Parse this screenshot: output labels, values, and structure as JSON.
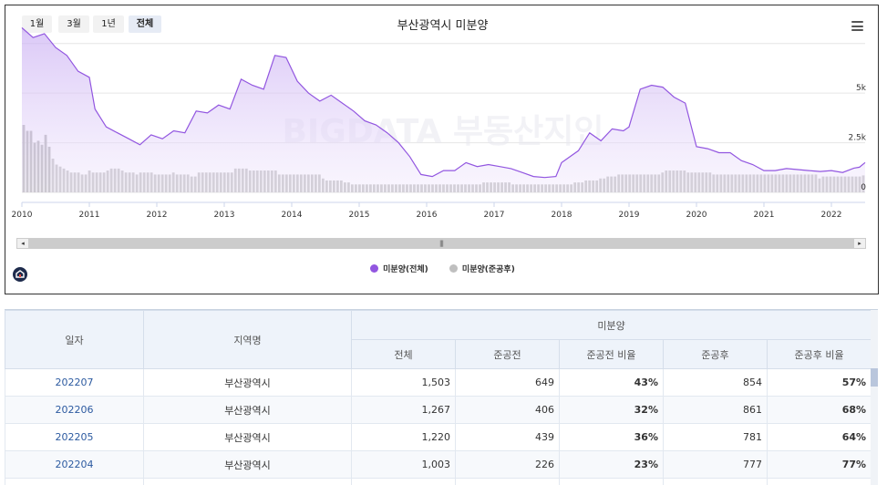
{
  "range_buttons": [
    {
      "label": "1월",
      "active": false
    },
    {
      "label": "3월",
      "active": false
    },
    {
      "label": "1년",
      "active": false
    },
    {
      "label": "전체",
      "active": true
    }
  ],
  "watermark": "BIGDATA 부동산지인",
  "colors": {
    "total": "#9256e0",
    "total_fill_top": "#d8c4f7",
    "after": "#bfbfbf",
    "after_dark": "#b0b0b0"
  },
  "chart_data": {
    "type": "line",
    "title": "부산광역시 미분양",
    "x_tick_labels": [
      "2010",
      "2011",
      "2012",
      "2013",
      "2014",
      "2015",
      "2016",
      "2017",
      "2018",
      "2019",
      "2020",
      "2021",
      "2022"
    ],
    "y_tick_labels": [
      "0",
      "2.5k",
      "5k"
    ],
    "ylim": [
      0,
      8500
    ],
    "x_range": [
      "2010-01",
      "2022-07"
    ],
    "grid": true,
    "legend_position": "bottom",
    "series": [
      {
        "name": "미분양(전체)",
        "type": "area",
        "points": [
          [
            "2010-01",
            8300
          ],
          [
            "2010-03",
            7800
          ],
          [
            "2010-05",
            8000
          ],
          [
            "2010-07",
            7300
          ],
          [
            "2010-09",
            6900
          ],
          [
            "2010-11",
            6100
          ],
          [
            "2011-01",
            5800
          ],
          [
            "2011-02",
            4200
          ],
          [
            "2011-04",
            3300
          ],
          [
            "2011-06",
            3000
          ],
          [
            "2011-08",
            2700
          ],
          [
            "2011-10",
            2400
          ],
          [
            "2011-12",
            2900
          ],
          [
            "2012-02",
            2700
          ],
          [
            "2012-04",
            3100
          ],
          [
            "2012-06",
            3000
          ],
          [
            "2012-08",
            4100
          ],
          [
            "2012-10",
            4000
          ],
          [
            "2012-12",
            4400
          ],
          [
            "2013-02",
            4200
          ],
          [
            "2013-04",
            5700
          ],
          [
            "2013-06",
            5400
          ],
          [
            "2013-08",
            5200
          ],
          [
            "2013-10",
            6900
          ],
          [
            "2013-12",
            6800
          ],
          [
            "2014-02",
            5600
          ],
          [
            "2014-04",
            5000
          ],
          [
            "2014-06",
            4600
          ],
          [
            "2014-08",
            4900
          ],
          [
            "2014-10",
            4500
          ],
          [
            "2014-12",
            4100
          ],
          [
            "2015-02",
            3600
          ],
          [
            "2015-04",
            3400
          ],
          [
            "2015-06",
            3000
          ],
          [
            "2015-08",
            2500
          ],
          [
            "2015-10",
            1800
          ],
          [
            "2015-12",
            900
          ],
          [
            "2016-02",
            800
          ],
          [
            "2016-04",
            1100
          ],
          [
            "2016-06",
            1100
          ],
          [
            "2016-08",
            1500
          ],
          [
            "2016-10",
            1300
          ],
          [
            "2016-12",
            1400
          ],
          [
            "2017-02",
            1300
          ],
          [
            "2017-04",
            1200
          ],
          [
            "2017-06",
            1000
          ],
          [
            "2017-08",
            800
          ],
          [
            "2017-10",
            750
          ],
          [
            "2017-12",
            800
          ],
          [
            "2018-01",
            1500
          ],
          [
            "2018-04",
            2100
          ],
          [
            "2018-06",
            3000
          ],
          [
            "2018-08",
            2600
          ],
          [
            "2018-10",
            3200
          ],
          [
            "2018-12",
            3100
          ],
          [
            "2019-01",
            3300
          ],
          [
            "2019-03",
            5200
          ],
          [
            "2019-05",
            5400
          ],
          [
            "2019-07",
            5300
          ],
          [
            "2019-09",
            4800
          ],
          [
            "2019-11",
            4500
          ],
          [
            "2020-01",
            2300
          ],
          [
            "2020-03",
            2200
          ],
          [
            "2020-05",
            2000
          ],
          [
            "2020-07",
            2000
          ],
          [
            "2020-09",
            1600
          ],
          [
            "2020-11",
            1400
          ],
          [
            "2021-01",
            1100
          ],
          [
            "2021-03",
            1100
          ],
          [
            "2021-05",
            1200
          ],
          [
            "2021-07",
            1150
          ],
          [
            "2021-09",
            1100
          ],
          [
            "2021-11",
            1050
          ],
          [
            "2022-01",
            1100
          ],
          [
            "2022-03",
            1000
          ],
          [
            "2022-05",
            1220
          ],
          [
            "2022-06",
            1267
          ],
          [
            "2022-07",
            1503
          ]
        ]
      },
      {
        "name": "미분양(준공후)",
        "type": "bar",
        "values": [
          3400,
          3100,
          3100,
          2500,
          2600,
          2400,
          2900,
          2300,
          1700,
          1400,
          1300,
          1200,
          1100,
          1000,
          1000,
          1000,
          900,
          900,
          1100,
          1000,
          1000,
          1000,
          1000,
          1100,
          1200,
          1200,
          1200,
          1100,
          1000,
          1000,
          1000,
          900,
          1000,
          1000,
          1000,
          1000,
          900,
          900,
          900,
          900,
          900,
          1000,
          900,
          900,
          900,
          900,
          800,
          800,
          1000,
          1000,
          1000,
          1000,
          1000,
          1000,
          1000,
          1000,
          1000,
          1000,
          1200,
          1200,
          1200,
          1200,
          1100,
          1100,
          1100,
          1100,
          1100,
          1100,
          1100,
          1100,
          900,
          900,
          900,
          900,
          900,
          900,
          900,
          900,
          900,
          900,
          900,
          900,
          700,
          600,
          600,
          600,
          600,
          600,
          500,
          500,
          400,
          400,
          400,
          400,
          400,
          400,
          400,
          400,
          400,
          400,
          400,
          400,
          400,
          400,
          400,
          400,
          400,
          400,
          400,
          400,
          400,
          400,
          400,
          400,
          400,
          400,
          400,
          400,
          400,
          400,
          400,
          400,
          400,
          400,
          400,
          400,
          500,
          500,
          500,
          500,
          500,
          500,
          500,
          500,
          400,
          400,
          400,
          400,
          400,
          400,
          400,
          400,
          400,
          400,
          400,
          400,
          400,
          400,
          400,
          400,
          400,
          500,
          500,
          500,
          600,
          600,
          600,
          600,
          700,
          700,
          800,
          800,
          800,
          900,
          900,
          900,
          900,
          900,
          900,
          900,
          900,
          900,
          900,
          900,
          900,
          1000,
          1100,
          1100,
          1100,
          1100,
          1100,
          1100,
          1000,
          1000,
          1000,
          1000,
          1000,
          1000,
          1000,
          900,
          900,
          900,
          900,
          900,
          900,
          900,
          900,
          900,
          900,
          900,
          900,
          900,
          900,
          900,
          900,
          900,
          900,
          900,
          900,
          900,
          900,
          900,
          900,
          900,
          900,
          900,
          900,
          900,
          700,
          800,
          800,
          800,
          800,
          800,
          800,
          800,
          800,
          800,
          800,
          800,
          854
        ]
      }
    ]
  },
  "table": {
    "headers": {
      "date": "일자",
      "region": "지역명",
      "group": "미분양",
      "total": "전체",
      "before": "준공전",
      "before_ratio": "준공전 비율",
      "after": "준공후",
      "after_ratio": "준공후 비율"
    },
    "rows": [
      {
        "date": "202207",
        "region": "부산광역시",
        "total": "1,503",
        "before": "649",
        "before_ratio": "43%",
        "after": "854",
        "after_ratio": "57%"
      },
      {
        "date": "202206",
        "region": "부산광역시",
        "total": "1,267",
        "before": "406",
        "before_ratio": "32%",
        "after": "861",
        "after_ratio": "68%"
      },
      {
        "date": "202205",
        "region": "부산광역시",
        "total": "1,220",
        "before": "439",
        "before_ratio": "36%",
        "after": "781",
        "after_ratio": "64%"
      },
      {
        "date": "202204",
        "region": "부산광역시",
        "total": "1,003",
        "before": "226",
        "before_ratio": "23%",
        "after": "777",
        "after_ratio": "77%"
      }
    ]
  }
}
